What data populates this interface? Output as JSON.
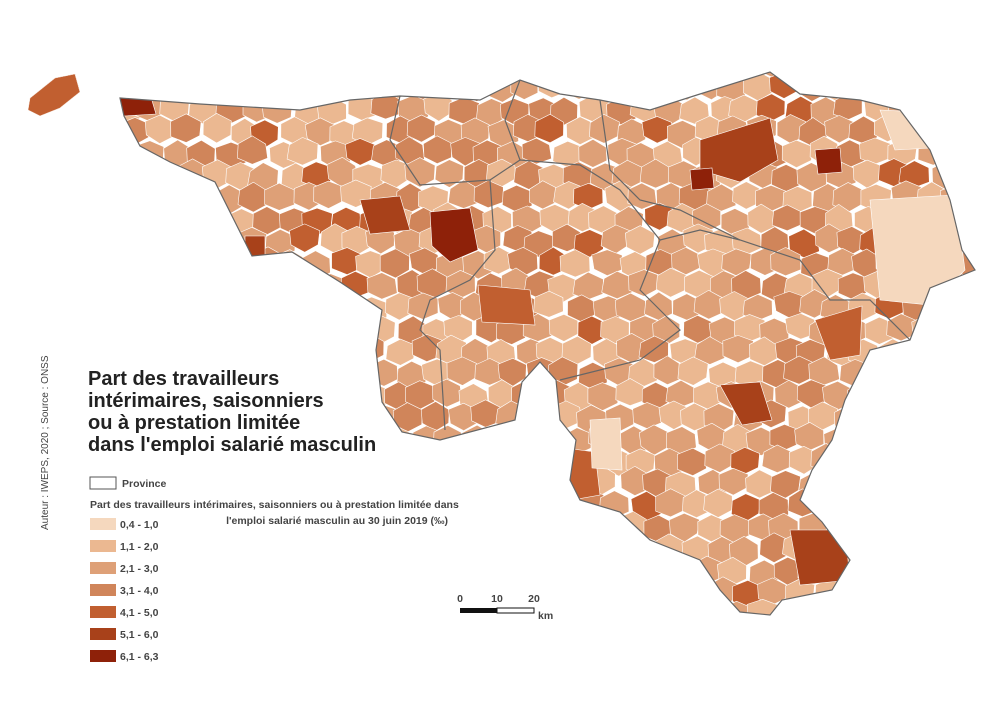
{
  "title": {
    "lines": [
      "Part des travailleurs",
      "intérimaires, saisonniers",
      "ou à prestation limitée",
      "dans l'emploi salarié masculin"
    ]
  },
  "credit": "Auteur : IWEPS, 2020 ; Source : ONSS",
  "legend": {
    "province": "Province",
    "heading": [
      "Part des travailleurs intérimaires, saisonniers ou à prestation limitée dans",
      "l'emploi salarié masculin au 30 juin 2019 (‰)"
    ],
    "classes": [
      {
        "label": "0,4 - 1,0",
        "color": "#f5d8be"
      },
      {
        "label": "1,1 - 2,0",
        "color": "#ebb891"
      },
      {
        "label": "2,1 - 3,0",
        "color": "#dea077"
      },
      {
        "label": "3,1 - 4,0",
        "color": "#d0855a"
      },
      {
        "label": "4,1 - 5,0",
        "color": "#c15f30"
      },
      {
        "label": "5,1 - 6,0",
        "color": "#a8411a"
      },
      {
        "label": "6,1 - 6,3",
        "color": "#8e2109"
      }
    ]
  },
  "scale": {
    "ticks": [
      "0",
      "10",
      "20"
    ],
    "unit": "km"
  }
}
